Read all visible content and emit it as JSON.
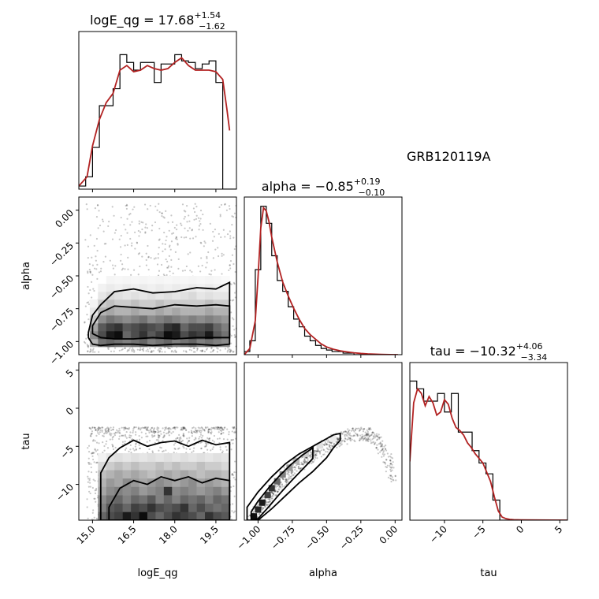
{
  "figure": {
    "annotation": "GRB120119A"
  },
  "colors": {
    "kde": "#b22222",
    "hist": "#000000",
    "contour": "#000000",
    "scatter": "#000000"
  },
  "chart_data": [
    {
      "panel": "logE_qg_hist",
      "type": "bar",
      "title": {
        "main": "logE_qg = 17.68",
        "sup": "+1.54",
        "sub": "−1.62"
      },
      "xlim": [
        14.5,
        20.25
      ],
      "ylim": [
        0,
        1.02
      ],
      "bin_edges": [
        14.5,
        14.75,
        15.0,
        15.25,
        15.5,
        15.75,
        16.0,
        16.25,
        16.5,
        16.75,
        17.0,
        17.25,
        17.5,
        17.75,
        18.0,
        18.25,
        18.5,
        18.75,
        19.0,
        19.25,
        19.5,
        19.75,
        20.0,
        20.25
      ],
      "counts": [
        0.02,
        0.08,
        0.27,
        0.54,
        0.54,
        0.65,
        0.87,
        0.82,
        0.77,
        0.82,
        0.82,
        0.69,
        0.81,
        0.81,
        0.87,
        0.83,
        0.82,
        0.78,
        0.81,
        0.83,
        0.69,
        0.0,
        0.0
      ],
      "kde_x": [
        14.5,
        14.8,
        15.0,
        15.25,
        15.5,
        15.75,
        16.0,
        16.25,
        16.5,
        16.75,
        17.0,
        17.25,
        17.5,
        17.75,
        18.0,
        18.25,
        18.5,
        18.75,
        19.0,
        19.25,
        19.5,
        19.75,
        19.9,
        20.0
      ],
      "kde_y": [
        0.02,
        0.08,
        0.28,
        0.45,
        0.56,
        0.62,
        0.77,
        0.8,
        0.76,
        0.77,
        0.8,
        0.78,
        0.77,
        0.78,
        0.82,
        0.85,
        0.8,
        0.77,
        0.77,
        0.77,
        0.76,
        0.71,
        0.52,
        0.38
      ],
      "xticks": [
        15.0,
        16.5,
        18.0,
        19.5
      ],
      "yticks": []
    },
    {
      "panel": "alpha_hist",
      "type": "bar",
      "title": {
        "main": "alpha = −0.85",
        "sup": "+0.19",
        "sub": "−0.10"
      },
      "xlim": [
        -1.1,
        0.05
      ],
      "ylim": [
        0,
        1.02
      ],
      "bin_edges": [
        -1.1,
        -1.06,
        -1.02,
        -0.98,
        -0.94,
        -0.9,
        -0.86,
        -0.82,
        -0.78,
        -0.74,
        -0.7,
        -0.66,
        -0.62,
        -0.58,
        -0.54,
        -0.5,
        -0.46,
        -0.42,
        -0.38,
        -0.34,
        -0.3,
        -0.26,
        -0.22,
        -0.18,
        -0.14,
        -0.1,
        -0.06,
        -0.02,
        0.02
      ],
      "counts": [
        0.02,
        0.09,
        0.55,
        0.96,
        0.85,
        0.64,
        0.48,
        0.41,
        0.31,
        0.23,
        0.18,
        0.12,
        0.09,
        0.06,
        0.04,
        0.03,
        0.02,
        0.02,
        0.01,
        0.01,
        0.0,
        0.0,
        0.0,
        0.0,
        0.0,
        0.0,
        0.0,
        0.0
      ],
      "kde_x": [
        -1.1,
        -1.06,
        -1.02,
        -1.0,
        -0.98,
        -0.96,
        -0.94,
        -0.92,
        -0.9,
        -0.86,
        -0.82,
        -0.78,
        -0.74,
        -0.7,
        -0.66,
        -0.62,
        -0.58,
        -0.54,
        -0.5,
        -0.45,
        -0.4,
        -0.35,
        -0.3,
        -0.25,
        -0.2,
        -0.1,
        0.0,
        0.02
      ],
      "kde_y": [
        0.0,
        0.04,
        0.22,
        0.5,
        0.82,
        0.95,
        0.93,
        0.86,
        0.76,
        0.6,
        0.47,
        0.38,
        0.3,
        0.23,
        0.17,
        0.13,
        0.1,
        0.07,
        0.05,
        0.035,
        0.025,
        0.018,
        0.012,
        0.008,
        0.005,
        0.002,
        0.0,
        0.0
      ],
      "xticks": [
        -1.0,
        -0.75,
        -0.5,
        -0.25,
        0.0
      ],
      "yticks": []
    },
    {
      "panel": "tau_hist",
      "type": "bar",
      "title": {
        "main": "tau = −10.32",
        "sup": "+4.06",
        "sub": "−3.34"
      },
      "xlim": [
        -14.5,
        6.0
      ],
      "ylim": [
        0,
        1.02
      ],
      "bin_edges": [
        -14.5,
        -13.6,
        -12.7,
        -11.8,
        -10.9,
        -10.0,
        -9.1,
        -8.2,
        -7.3,
        -6.4,
        -5.5,
        -4.6,
        -3.7,
        -2.8,
        -1.9,
        -1.0,
        -0.1,
        0.8,
        1.7,
        2.6,
        3.5,
        4.4,
        5.3,
        6.2
      ],
      "counts": [
        0.9,
        0.85,
        0.77,
        0.77,
        0.82,
        0.7,
        0.82,
        0.57,
        0.57,
        0.45,
        0.37,
        0.3,
        0.13,
        0.0,
        0.0,
        0.0,
        0.0,
        0.0,
        0.0,
        0.0,
        0.0,
        0.0,
        0.0
      ],
      "kde_x": [
        -14.5,
        -14.0,
        -13.5,
        -13.0,
        -12.5,
        -12.0,
        -11.5,
        -11.0,
        -10.5,
        -10.0,
        -9.5,
        -9.0,
        -8.5,
        -8.0,
        -7.5,
        -7.0,
        -6.5,
        -6.0,
        -5.5,
        -5.0,
        -4.5,
        -4.0,
        -3.5,
        -3.0,
        -2.5,
        -2.0,
        -1.5,
        -1.0,
        0.0,
        2.0,
        6.0
      ],
      "kde_y": [
        0.38,
        0.76,
        0.85,
        0.82,
        0.74,
        0.8,
        0.76,
        0.68,
        0.7,
        0.78,
        0.75,
        0.66,
        0.6,
        0.58,
        0.55,
        0.5,
        0.47,
        0.43,
        0.4,
        0.37,
        0.31,
        0.25,
        0.15,
        0.06,
        0.02,
        0.01,
        0.005,
        0.003,
        0.002,
        0.001,
        0.0
      ],
      "xticks": [
        -10,
        -5,
        0,
        5
      ],
      "yticks": []
    },
    {
      "panel": "alpha_vs_logE_qg",
      "type": "heatmap",
      "xlabel": "",
      "ylabel": "alpha",
      "xlim": [
        14.5,
        20.25
      ],
      "ylim": [
        -1.1,
        0.1
      ],
      "xticks": [],
      "yticks": [
        0.0,
        -0.25,
        -0.5,
        -0.75,
        -1.0
      ],
      "ytick_labels": [
        "0.00",
        "−0.25",
        "−0.50",
        "−0.75",
        "−1.00"
      ],
      "x_edges": [
        14.9,
        15.2,
        15.5,
        15.8,
        16.1,
        16.4,
        16.7,
        17.0,
        17.3,
        17.6,
        17.9,
        18.2,
        18.5,
        18.8,
        19.1,
        19.4,
        19.7,
        20.0
      ],
      "y_edges": [
        -1.04,
        -0.98,
        -0.92,
        -0.86,
        -0.8,
        -0.74,
        -0.68,
        -0.62,
        -0.56,
        -0.5
      ],
      "density": [
        [
          0.3,
          0.55,
          0.6,
          0.55,
          0.5,
          0.55,
          0.6,
          0.5,
          0.55,
          0.6,
          0.5,
          0.55,
          0.6,
          0.5,
          0.55,
          0.5,
          0.45
        ],
        [
          0.45,
          0.7,
          0.9,
          0.95,
          0.6,
          0.7,
          0.8,
          0.65,
          0.75,
          0.95,
          0.9,
          0.7,
          0.8,
          0.75,
          0.9,
          0.65,
          0.55
        ],
        [
          0.35,
          0.65,
          0.75,
          0.8,
          0.65,
          0.7,
          0.75,
          0.7,
          0.65,
          0.8,
          0.85,
          0.6,
          0.7,
          0.7,
          0.75,
          0.6,
          0.5
        ],
        [
          0.2,
          0.45,
          0.55,
          0.5,
          0.45,
          0.5,
          0.55,
          0.45,
          0.5,
          0.55,
          0.5,
          0.45,
          0.5,
          0.45,
          0.5,
          0.45,
          0.4
        ],
        [
          0.1,
          0.3,
          0.35,
          0.3,
          0.3,
          0.35,
          0.3,
          0.3,
          0.35,
          0.3,
          0.35,
          0.3,
          0.3,
          0.3,
          0.35,
          0.3,
          0.3
        ],
        [
          0.05,
          0.2,
          0.25,
          0.2,
          0.2,
          0.25,
          0.2,
          0.2,
          0.25,
          0.2,
          0.2,
          0.2,
          0.2,
          0.2,
          0.25,
          0.2,
          0.2
        ],
        [
          0.0,
          0.1,
          0.15,
          0.12,
          0.1,
          0.12,
          0.1,
          0.12,
          0.1,
          0.12,
          0.1,
          0.12,
          0.15,
          0.1,
          0.12,
          0.1,
          0.1
        ],
        [
          0.0,
          0.05,
          0.08,
          0.06,
          0.08,
          0.06,
          0.08,
          0.06,
          0.08,
          0.06,
          0.08,
          0.06,
          0.08,
          0.06,
          0.08,
          0.06,
          0.05
        ],
        [
          0.0,
          0.0,
          0.04,
          0.03,
          0.04,
          0.03,
          0.04,
          0.03,
          0.04,
          0.03,
          0.04,
          0.03,
          0.04,
          0.03,
          0.04,
          0.03,
          0.02
        ]
      ],
      "contours": [
        {
          "x": [
            14.85,
            15.0,
            15.3,
            15.8,
            16.5,
            17.2,
            18.0,
            18.8,
            19.5,
            20.0
          ],
          "y_lower": [
            -0.97,
            -1.02,
            -1.03,
            -1.02,
            -1.02,
            -1.03,
            -1.02,
            -1.02,
            -1.03,
            -1.02
          ],
          "y_upper": [
            -0.93,
            -0.8,
            -0.72,
            -0.62,
            -0.6,
            -0.63,
            -0.62,
            -0.59,
            -0.6,
            -0.55
          ]
        },
        {
          "x": [
            15.0,
            15.3,
            15.8,
            16.5,
            17.2,
            18.0,
            18.8,
            19.5,
            20.0
          ],
          "y_lower": [
            -0.94,
            -0.97,
            -0.98,
            -0.98,
            -0.97,
            -0.98,
            -0.97,
            -0.97,
            -0.97
          ],
          "y_upper": [
            -0.88,
            -0.78,
            -0.73,
            -0.74,
            -0.75,
            -0.72,
            -0.73,
            -0.72,
            -0.73
          ]
        }
      ],
      "scatter_region": {
        "x_range": [
          14.7,
          20.25
        ],
        "y_range": [
          -1.08,
          0.05
        ],
        "count": 900,
        "density_peak_y": -0.9
      }
    },
    {
      "panel": "tau_vs_logE_qg",
      "type": "heatmap",
      "xlabel": "logE_qg",
      "ylabel": "tau",
      "xlim": [
        14.5,
        20.25
      ],
      "ylim": [
        -14.7,
        6.0
      ],
      "xticks": [
        15.0,
        16.5,
        18.0,
        19.5
      ],
      "xtick_labels": [
        "15.0",
        "16.5",
        "18.0",
        "19.5"
      ],
      "yticks": [
        5,
        0,
        -5,
        -10
      ],
      "ytick_labels": [
        "5",
        "0",
        "−5",
        "−10"
      ],
      "x_edges": [
        15.2,
        15.5,
        15.8,
        16.1,
        16.4,
        16.7,
        17.0,
        17.3,
        17.6,
        17.9,
        18.2,
        18.5,
        18.8,
        19.1,
        19.4,
        19.7,
        20.0
      ],
      "y_edges": [
        -14.7,
        -13.6,
        -12.5,
        -11.4,
        -10.3,
        -9.2,
        -8.1,
        -7.0,
        -5.9
      ],
      "density": [
        [
          0.6,
          0.7,
          0.75,
          0.9,
          0.8,
          0.95,
          0.7,
          0.6,
          0.7,
          0.8,
          0.75,
          0.7,
          0.6,
          0.8,
          0.7,
          0.65
        ],
        [
          0.5,
          0.65,
          0.7,
          0.6,
          0.75,
          0.7,
          0.8,
          0.7,
          0.65,
          0.7,
          0.8,
          0.6,
          0.7,
          0.6,
          0.55,
          0.6
        ],
        [
          0.45,
          0.55,
          0.6,
          0.5,
          0.6,
          0.55,
          0.65,
          0.5,
          0.6,
          0.5,
          0.6,
          0.55,
          0.6,
          0.5,
          0.6,
          0.55
        ],
        [
          0.35,
          0.45,
          0.5,
          0.45,
          0.5,
          0.4,
          0.45,
          0.5,
          0.8,
          0.45,
          0.5,
          0.45,
          0.4,
          0.45,
          0.5,
          0.4
        ],
        [
          0.3,
          0.4,
          0.35,
          0.45,
          0.4,
          0.35,
          0.4,
          0.45,
          0.4,
          0.35,
          0.4,
          0.45,
          0.35,
          0.4,
          0.35,
          0.3
        ],
        [
          0.25,
          0.3,
          0.35,
          0.3,
          0.35,
          0.3,
          0.25,
          0.3,
          0.35,
          0.3,
          0.35,
          0.3,
          0.25,
          0.3,
          0.3,
          0.25
        ],
        [
          0.15,
          0.2,
          0.25,
          0.2,
          0.25,
          0.2,
          0.2,
          0.25,
          0.2,
          0.25,
          0.2,
          0.2,
          0.25,
          0.2,
          0.2,
          0.15
        ],
        [
          0.05,
          0.1,
          0.12,
          0.1,
          0.12,
          0.1,
          0.12,
          0.1,
          0.12,
          0.1,
          0.12,
          0.1,
          0.12,
          0.1,
          0.12,
          0.1
        ]
      ],
      "contours": [
        {
          "x": [
            15.3,
            15.6,
            16.0,
            16.5,
            17.0,
            17.5,
            18.0,
            18.5,
            19.0,
            19.5,
            20.0
          ],
          "y_upper": [
            -8.5,
            -6.5,
            -5.2,
            -4.2,
            -5.0,
            -4.5,
            -4.3,
            -5.0,
            -4.2,
            -4.8,
            -4.5
          ],
          "y_lower": [
            -14.7,
            -14.7,
            -14.7,
            -14.7,
            -14.7,
            -14.7,
            -14.7,
            -14.7,
            -14.7,
            -14.7,
            -14.7
          ]
        },
        {
          "x": [
            15.6,
            16.0,
            16.5,
            17.0,
            17.5,
            18.0,
            18.5,
            19.0,
            19.5,
            20.0
          ],
          "y_upper": [
            -13.0,
            -10.5,
            -9.5,
            -10.0,
            -9.0,
            -9.5,
            -9.0,
            -9.8,
            -9.2,
            -9.5
          ],
          "y_lower": [
            -14.7,
            -14.7,
            -14.7,
            -14.7,
            -14.7,
            -14.7,
            -14.7,
            -14.7,
            -14.7,
            -14.7
          ]
        }
      ],
      "scatter_region": {
        "x_range": [
          14.8,
          20.25
        ],
        "y_range": [
          -14.7,
          -2.5
        ],
        "count": 1100,
        "density_peak_y": -4
      }
    },
    {
      "panel": "tau_vs_alpha",
      "type": "heatmap",
      "xlabel": "alpha",
      "ylabel": "",
      "xlim": [
        -1.1,
        0.05
      ],
      "ylim": [
        -14.7,
        6.0
      ],
      "xticks": [
        -1.0,
        -0.75,
        -0.5,
        -0.25,
        0.0
      ],
      "xtick_labels": [
        "−1.00",
        "−0.75",
        "−0.50",
        "−0.25",
        "0.00"
      ],
      "yticks": [],
      "ridge": {
        "alpha": [
          -1.06,
          -1.0,
          -0.95,
          -0.9,
          -0.85,
          -0.8,
          -0.75,
          -0.7,
          -0.65,
          -0.6,
          -0.55,
          -0.5,
          -0.45,
          -0.4,
          -0.35,
          -0.3,
          -0.25,
          -0.2,
          -0.15,
          -0.1,
          -0.05,
          -0.02
        ],
        "tau": [
          -14.7,
          -13.2,
          -12.0,
          -10.8,
          -9.6,
          -8.6,
          -7.7,
          -6.9,
          -6.2,
          -5.6,
          -5.0,
          -4.5,
          -4.0,
          -3.6,
          -3.3,
          -3.1,
          -3.0,
          -3.1,
          -3.6,
          -4.6,
          -6.5,
          -8.5
        ]
      },
      "cells": [
        {
          "alpha": -1.03,
          "tau": -14.2,
          "v": 0.95
        },
        {
          "alpha": -1.0,
          "tau": -13.3,
          "v": 0.85
        },
        {
          "alpha": -0.97,
          "tau": -12.4,
          "v": 0.9
        },
        {
          "alpha": -0.93,
          "tau": -11.4,
          "v": 0.75
        },
        {
          "alpha": -0.9,
          "tau": -10.5,
          "v": 0.8
        },
        {
          "alpha": -0.86,
          "tau": -9.6,
          "v": 0.6
        },
        {
          "alpha": -0.82,
          "tau": -8.7,
          "v": 0.5
        },
        {
          "alpha": -0.77,
          "tau": -7.8,
          "v": 0.4
        },
        {
          "alpha": -0.72,
          "tau": -6.9,
          "v": 0.3
        },
        {
          "alpha": -0.65,
          "tau": -6.0,
          "v": 0.2
        },
        {
          "alpha": -0.55,
          "tau": -4.9,
          "v": 0.12
        },
        {
          "alpha": -0.45,
          "tau": -4.0,
          "v": 0.08
        }
      ],
      "contours": [
        {
          "alpha": [
            -1.08,
            -1.0,
            -0.9,
            -0.8,
            -0.7,
            -0.6,
            -0.5,
            -0.45,
            -0.4
          ],
          "tau_upper": [
            -13.0,
            -11.0,
            -9.0,
            -7.3,
            -6.0,
            -5.0,
            -4.0,
            -3.5,
            -3.3
          ],
          "tau_lower": [
            -14.7,
            -14.7,
            -13.2,
            -11.5,
            -9.8,
            -8.3,
            -6.5,
            -5.2,
            -4.2
          ]
        },
        {
          "alpha": [
            -1.05,
            -1.0,
            -0.92,
            -0.84,
            -0.76,
            -0.68,
            -0.6
          ],
          "tau_upper": [
            -13.6,
            -12.2,
            -10.4,
            -8.8,
            -7.4,
            -6.2,
            -5.2
          ],
          "tau_lower": [
            -14.7,
            -14.5,
            -12.9,
            -11.2,
            -9.6,
            -8.1,
            -6.6
          ]
        }
      ],
      "scatter_region": {
        "count": 800
      }
    }
  ]
}
